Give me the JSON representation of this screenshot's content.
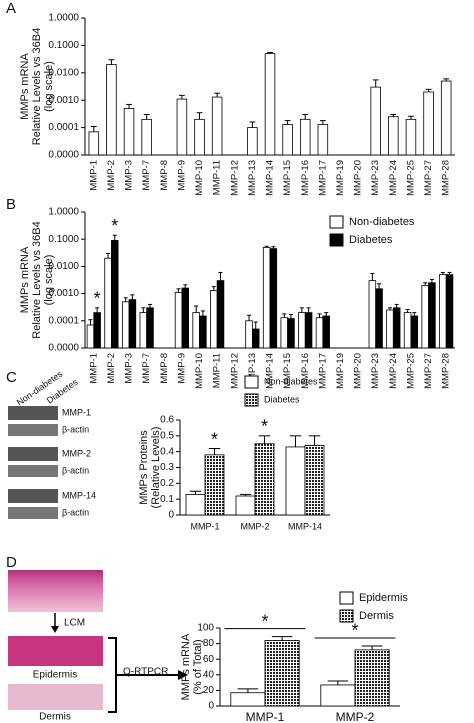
{
  "panel_labels": [
    "A",
    "B",
    "C",
    "D"
  ],
  "blot": {
    "columns": [
      "Non-diabetes",
      "Diabetes"
    ],
    "rows": [
      "MMP-1",
      "β-actin",
      "MMP-2",
      "β-actin",
      "MMP-14",
      "β-actin"
    ]
  },
  "diagram": {
    "steps": [
      "LCM",
      "Epidermis",
      "Dermis",
      "Q-RTPCR"
    ]
  },
  "chart_data": [
    {
      "type": "bar",
      "yscale": "log",
      "ylabel": [
        "MMPs mRNA",
        "Relative Levels vs 36B4",
        "(log scale)"
      ],
      "categories": [
        "MMP-1",
        "MMP-2",
        "MMP-3",
        "MMP-7",
        "MMP-8",
        "MMP-9",
        "MMP-10",
        "MMP-11",
        "MMP-12",
        "MMP-13",
        "MMP-14",
        "MMP-15",
        "MMP-16",
        "MMP-17",
        "MMP-19",
        "MMP-20",
        "MMP-23",
        "MMP-24",
        "MMP-25",
        "MMP-27",
        "MMP-28"
      ],
      "values": [
        7e-05,
        0.02,
        0.0005,
        0.0002,
        null,
        0.0011,
        0.0002,
        0.0013,
        null,
        0.0001,
        0.05,
        0.00013,
        0.0002,
        0.00013,
        null,
        null,
        0.003,
        0.00025,
        0.0002,
        0.002,
        0.005
      ],
      "errors": [
        4e-05,
        0.01,
        0.0002,
        0.0001,
        null,
        0.0004,
        0.00015,
        0.0005,
        null,
        6e-05,
        0.005,
        5e-05,
        0.0001,
        5e-05,
        null,
        null,
        0.0025,
        5e-05,
        6e-05,
        0.0005,
        0.001
      ],
      "color": "#ffffff",
      "ylim": [
        1e-05,
        1
      ],
      "yticks": [
        {
          "value": 1e-05,
          "label": "0.0000"
        },
        {
          "value": 0.0001,
          "label": "0.0001"
        },
        {
          "value": 0.001,
          "label": "0.0010"
        },
        {
          "value": 0.01,
          "label": "0.0100"
        },
        {
          "value": 0.1,
          "label": "0.1000"
        },
        {
          "value": 1,
          "label": "1.0000"
        }
      ]
    },
    {
      "type": "bar",
      "yscale": "log",
      "ylabel": [
        "MMPs mRNA",
        "Relative Levels vs 36B4",
        "(log scale)"
      ],
      "categories": [
        "MMP-1",
        "MMP-2",
        "MMP-3",
        "MMP-7",
        "MMP-8",
        "MMP-9",
        "MMP-10",
        "MMP-11",
        "MMP-12",
        "MMP-13",
        "MMP-14",
        "MMP-15",
        "MMP-16",
        "MMP-17",
        "MMP-19",
        "MMP-20",
        "MMP-23",
        "MMP-24",
        "MMP-25",
        "MMP-27",
        "MMP-28"
      ],
      "series": [
        {
          "name": "Non-diabetes",
          "color": "#ffffff",
          "values": [
            7e-05,
            0.02,
            0.0005,
            0.0002,
            null,
            0.0011,
            0.0002,
            0.0013,
            null,
            0.0001,
            0.05,
            0.00013,
            0.0002,
            0.00013,
            null,
            null,
            0.003,
            0.00025,
            0.0002,
            0.002,
            0.005
          ],
          "errors": [
            4e-05,
            0.01,
            0.0002,
            0.0001,
            null,
            0.0004,
            0.00015,
            0.0005,
            null,
            6e-05,
            0.005,
            5e-05,
            0.0001,
            5e-05,
            null,
            null,
            0.0025,
            5e-05,
            6e-05,
            0.0005,
            0.001
          ]
        },
        {
          "name": "Diabetes",
          "color": "#000000",
          "values": [
            0.0002,
            0.09,
            0.0006,
            0.0003,
            null,
            0.0016,
            0.00015,
            0.003,
            null,
            5e-05,
            0.045,
            0.00012,
            0.0002,
            0.00015,
            null,
            null,
            0.0015,
            0.0003,
            0.00015,
            0.0025,
            0.005
          ],
          "errors": [
            0.0001,
            0.05,
            0.0003,
            0.0001,
            null,
            0.0005,
            8e-05,
            0.003,
            null,
            4e-05,
            0.008,
            5e-05,
            0.0001,
            5e-05,
            null,
            null,
            0.0008,
            0.0001,
            5e-05,
            0.0008,
            0.001
          ]
        }
      ],
      "legend": "upper right",
      "annotations": [
        {
          "text": "*",
          "category": "MMP-1"
        },
        {
          "text": "*",
          "category": "MMP-2"
        }
      ],
      "ylim": [
        1e-05,
        1
      ],
      "yticks": [
        {
          "value": 1e-05,
          "label": "0.0000"
        },
        {
          "value": 0.0001,
          "label": "0.0001"
        },
        {
          "value": 0.001,
          "label": "0.0010"
        },
        {
          "value": 0.01,
          "label": "0.0100"
        },
        {
          "value": 0.1,
          "label": "0.1000"
        },
        {
          "value": 1,
          "label": "1.0000"
        }
      ]
    },
    {
      "type": "bar",
      "ylabel": [
        "MMPs Proteins",
        "(Relative Levels)"
      ],
      "categories": [
        "MMP-1",
        "MMP-2",
        "MMP-14"
      ],
      "series": [
        {
          "name": "Non-diabetes",
          "color": "#ffffff",
          "values": [
            0.13,
            0.12,
            0.43
          ],
          "errors": [
            0.02,
            0.01,
            0.07
          ]
        },
        {
          "name": "Diabetes",
          "color": "#000000",
          "pattern": "dots",
          "values": [
            0.38,
            0.45,
            0.44
          ],
          "errors": [
            0.04,
            0.05,
            0.06
          ]
        }
      ],
      "legend": "upper right",
      "annotations": [
        {
          "text": "*",
          "category": "MMP-1"
        },
        {
          "text": "*",
          "category": "MMP-2"
        }
      ],
      "ylim": [
        0,
        0.6
      ],
      "yticks": [
        0,
        0.1,
        0.2,
        0.3,
        0.4,
        0.5,
        0.6
      ]
    },
    {
      "type": "bar",
      "ylabel": [
        "MMPs mRNA",
        "(% of Total)"
      ],
      "categories": [
        "MMP-1",
        "MMP-2"
      ],
      "series": [
        {
          "name": "Epidermis",
          "color": "#ffffff",
          "values": [
            17,
            27
          ],
          "errors": [
            5,
            5
          ]
        },
        {
          "name": "Dermis",
          "color": "#000000",
          "pattern": "dots",
          "values": [
            84,
            72
          ],
          "errors": [
            5,
            5
          ]
        }
      ],
      "legend": "upper right",
      "annotations": [
        {
          "text": "*",
          "category": "MMP-1",
          "bracket": true
        },
        {
          "text": "*",
          "category": "MMP-2",
          "bracket": true
        }
      ],
      "ylim": [
        0,
        100
      ],
      "yticks": [
        0,
        20,
        40,
        60,
        80,
        100
      ]
    }
  ]
}
